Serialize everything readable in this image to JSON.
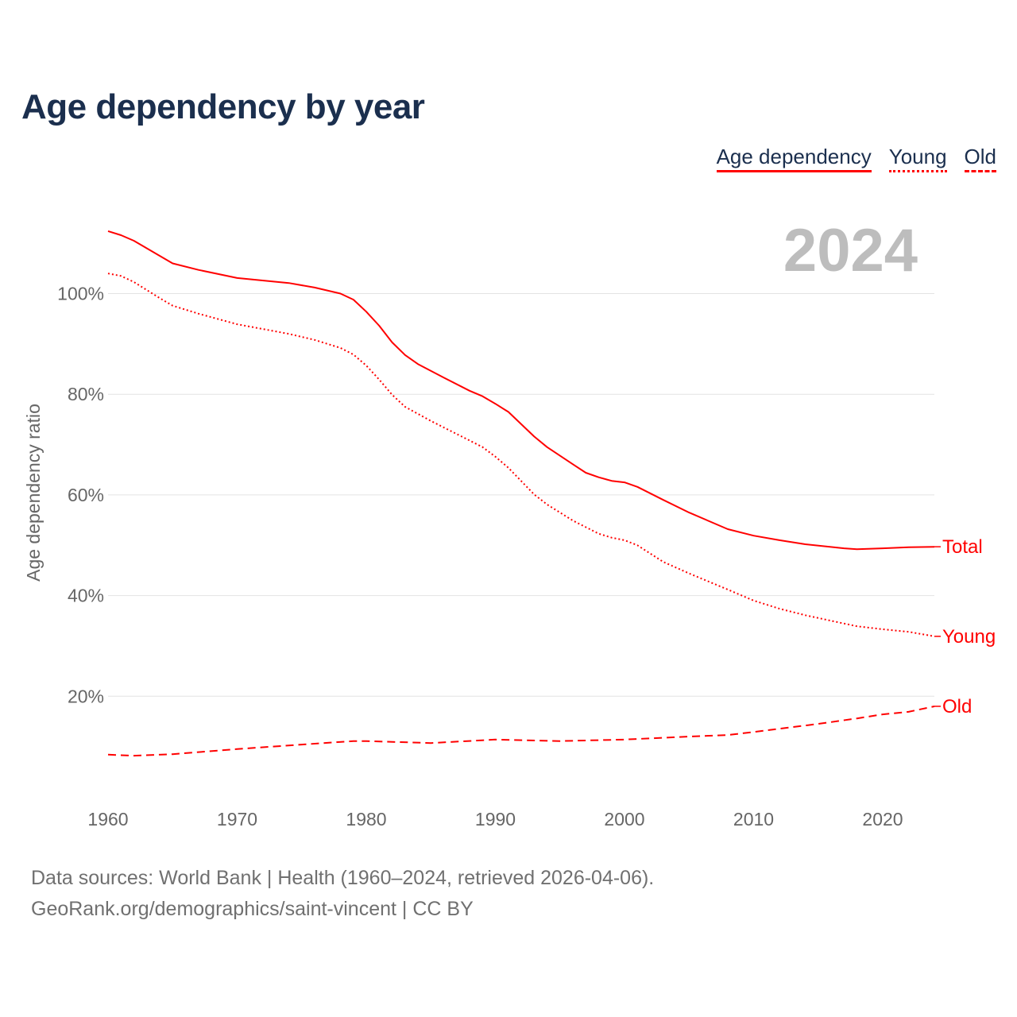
{
  "chart_data": {
    "type": "line",
    "title": "Age dependency by year",
    "ylabel": "Age dependency ratio",
    "xlabel": "",
    "ylim": [
      0,
      120
    ],
    "xlim": [
      1960,
      2024
    ],
    "yticks": [
      20,
      40,
      60,
      80,
      100
    ],
    "ytick_labels": [
      "20%",
      "40%",
      "60%",
      "80%",
      "100%"
    ],
    "xticks": [
      1960,
      1970,
      1980,
      1990,
      2000,
      2010,
      2020
    ],
    "xtick_labels": [
      "1960",
      "1970",
      "1980",
      "1990",
      "2000",
      "2010",
      "2020"
    ],
    "year_label": "2024",
    "legend": [
      "Age dependency",
      "Young",
      "Old"
    ],
    "legend_placement": "top-right",
    "series": [
      {
        "name": "Total",
        "label": "Total",
        "style": "solid",
        "points": [
          [
            1960,
            112.4
          ],
          [
            1961,
            111.6
          ],
          [
            1962,
            110.5
          ],
          [
            1964,
            107.5
          ],
          [
            1965,
            106
          ],
          [
            1967,
            104.7
          ],
          [
            1970,
            103.1
          ],
          [
            1974,
            102.1
          ],
          [
            1976,
            101.2
          ],
          [
            1978,
            100
          ],
          [
            1979,
            98.8
          ],
          [
            1980,
            96.4
          ],
          [
            1981,
            93.6
          ],
          [
            1982,
            90.3
          ],
          [
            1983,
            87.8
          ],
          [
            1984,
            86
          ],
          [
            1986,
            83.3
          ],
          [
            1988,
            80.7
          ],
          [
            1989,
            79.6
          ],
          [
            1990,
            78.1
          ],
          [
            1991,
            76.5
          ],
          [
            1993,
            71.6
          ],
          [
            1994,
            69.5
          ],
          [
            1996,
            66.1
          ],
          [
            1997,
            64.4
          ],
          [
            1998,
            63.5
          ],
          [
            1999,
            62.8
          ],
          [
            2000,
            62.5
          ],
          [
            2001,
            61.6
          ],
          [
            2003,
            59
          ],
          [
            2005,
            56.5
          ],
          [
            2008,
            53.2
          ],
          [
            2010,
            51.9
          ],
          [
            2012,
            51
          ],
          [
            2014,
            50.2
          ],
          [
            2017,
            49.4
          ],
          [
            2018,
            49.2
          ],
          [
            2020,
            49.4
          ],
          [
            2022,
            49.6
          ],
          [
            2024,
            49.7
          ]
        ]
      },
      {
        "name": "Young",
        "label": "Young",
        "style": "dotted",
        "points": [
          [
            1960,
            104
          ],
          [
            1961,
            103.5
          ],
          [
            1962,
            102.3
          ],
          [
            1964,
            99.1
          ],
          [
            1965,
            97.6
          ],
          [
            1967,
            96
          ],
          [
            1970,
            93.9
          ],
          [
            1974,
            92
          ],
          [
            1976,
            90.8
          ],
          [
            1978,
            89.2
          ],
          [
            1979,
            87.9
          ],
          [
            1980,
            85.7
          ],
          [
            1981,
            82.9
          ],
          [
            1982,
            79.9
          ],
          [
            1983,
            77.5
          ],
          [
            1985,
            74.7
          ],
          [
            1987,
            72.1
          ],
          [
            1989,
            69.5
          ],
          [
            1990,
            67.6
          ],
          [
            1991,
            65.4
          ],
          [
            1993,
            60.1
          ],
          [
            1994,
            58.1
          ],
          [
            1996,
            54.9
          ],
          [
            1998,
            52.3
          ],
          [
            1999,
            51.5
          ],
          [
            2000,
            51
          ],
          [
            2001,
            50
          ],
          [
            2003,
            46.7
          ],
          [
            2005,
            44.4
          ],
          [
            2008,
            41.2
          ],
          [
            2010,
            39
          ],
          [
            2012,
            37.4
          ],
          [
            2014,
            36.1
          ],
          [
            2016,
            35
          ],
          [
            2018,
            33.9
          ],
          [
            2020,
            33.3
          ],
          [
            2022,
            32.8
          ],
          [
            2024,
            31.9
          ]
        ]
      },
      {
        "name": "Old",
        "label": "Old",
        "style": "dashed",
        "points": [
          [
            1960,
            8.4
          ],
          [
            1962,
            8.2
          ],
          [
            1965,
            8.5
          ],
          [
            1970,
            9.5
          ],
          [
            1975,
            10.4
          ],
          [
            1979,
            11.1
          ],
          [
            1980,
            11.1
          ],
          [
            1985,
            10.7
          ],
          [
            1990,
            11.4
          ],
          [
            1995,
            11.1
          ],
          [
            2000,
            11.4
          ],
          [
            2005,
            12
          ],
          [
            2008,
            12.3
          ],
          [
            2010,
            12.9
          ],
          [
            2015,
            14.5
          ],
          [
            2018,
            15.6
          ],
          [
            2020,
            16.4
          ],
          [
            2022,
            16.9
          ],
          [
            2024,
            18
          ]
        ]
      }
    ],
    "color": "#ff0000"
  },
  "footer": {
    "line1": "Data sources: World Bank | Health (1960–2024, retrieved 2026-04-06).",
    "line2": "GeoRank.org/demographics/saint-vincent | CC BY"
  }
}
